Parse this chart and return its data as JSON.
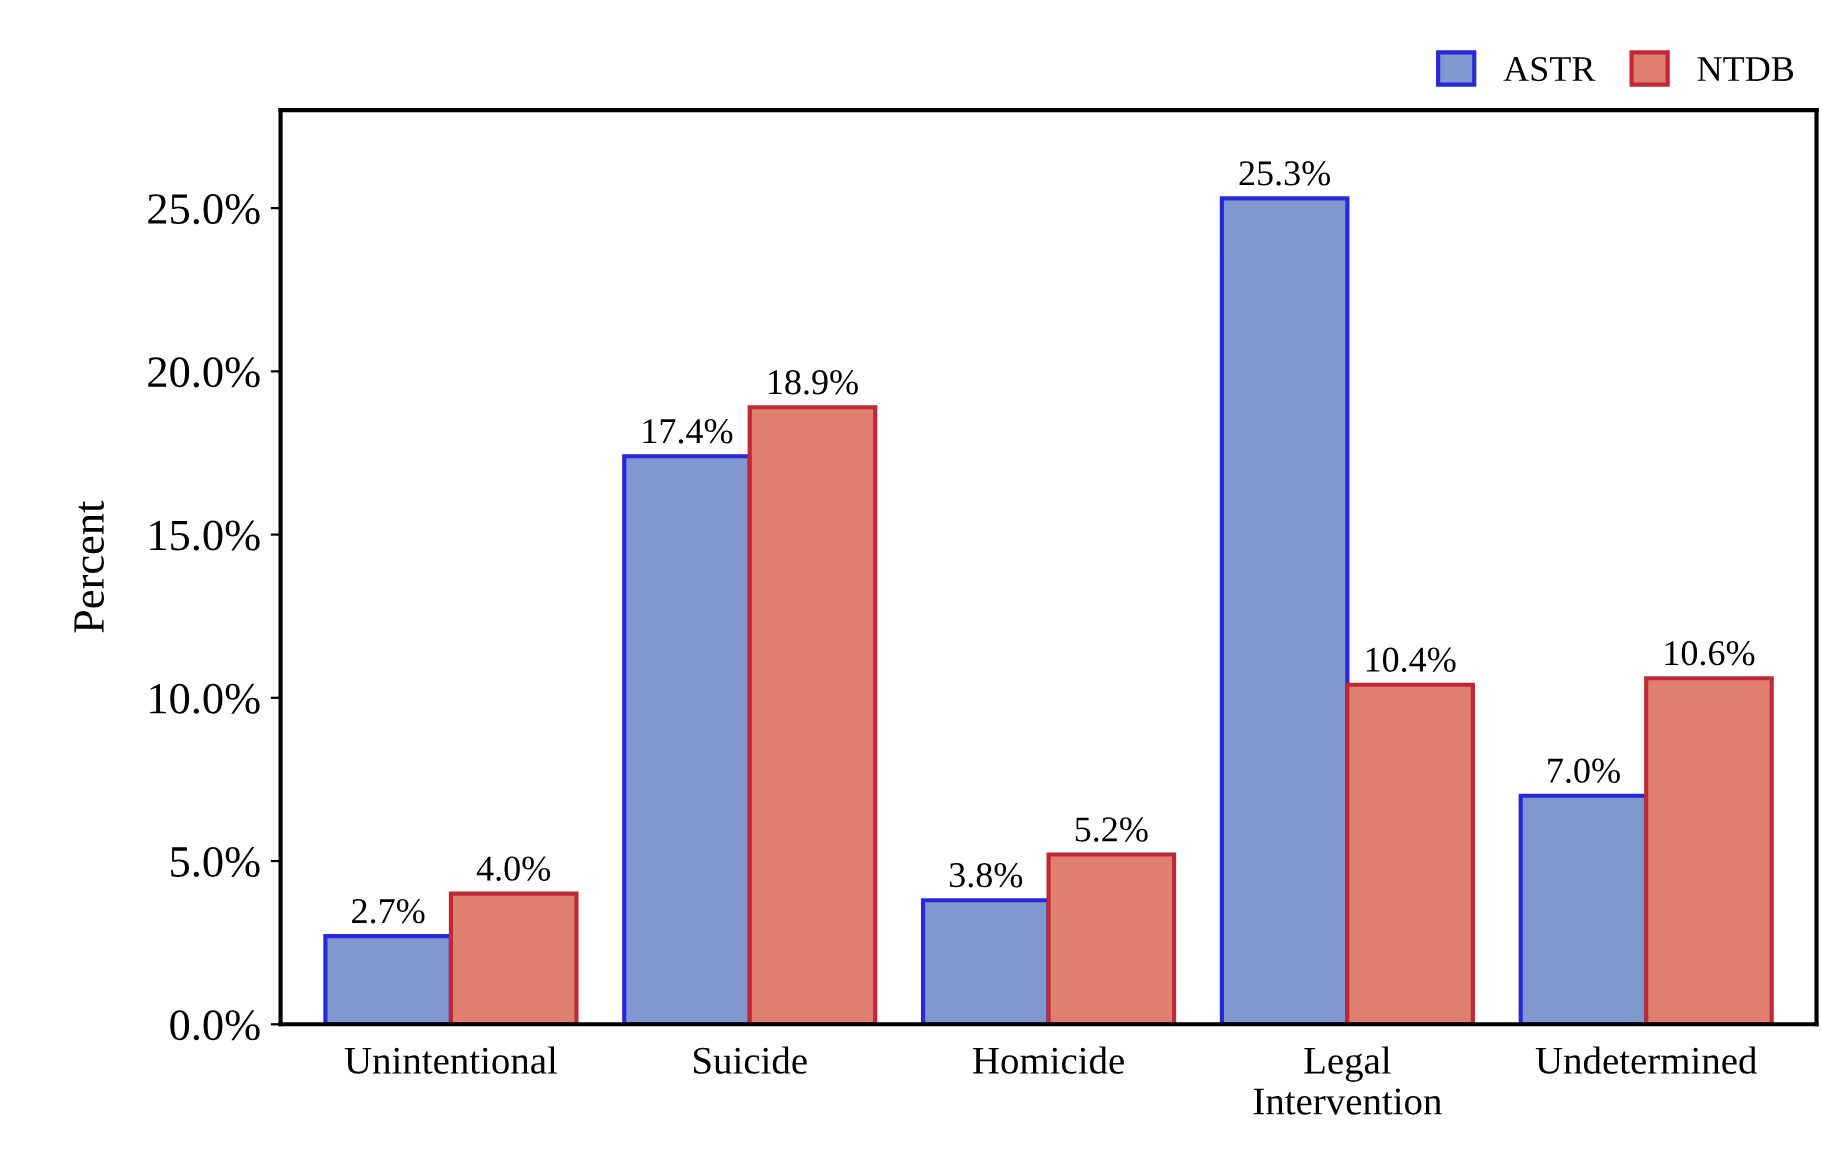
{
  "chart_data": {
    "type": "bar",
    "ylabel": "Percent",
    "categories": [
      "Unintentional",
      "Suicide",
      "Homicide",
      "Legal\nIntervention",
      "Undetermined"
    ],
    "series": [
      {
        "name": "ASTR",
        "color": "#7f99cf",
        "values": [
          2.7,
          17.4,
          3.8,
          25.3,
          7.0
        ],
        "value_labels": [
          "2.7%",
          "17.4%",
          "3.8%",
          "25.3%",
          "7.0%"
        ]
      },
      {
        "name": "NTDB",
        "color": "#df7f6f",
        "values": [
          4.0,
          18.9,
          5.2,
          10.4,
          10.6
        ],
        "value_labels": [
          "4.0%",
          "18.9%",
          "5.2%",
          "10.4%",
          "10.6%"
        ]
      }
    ],
    "ylim": [
      0,
      28
    ],
    "yticks": [
      {
        "value": 0,
        "label": "0.0%"
      },
      {
        "value": 5,
        "label": "5.0%"
      },
      {
        "value": 10,
        "label": "10.0%"
      },
      {
        "value": 15,
        "label": "15.0%"
      },
      {
        "value": 20,
        "label": "20.0%"
      },
      {
        "value": 25,
        "label": "25.0%"
      }
    ],
    "grid": false,
    "legend": "top right"
  }
}
